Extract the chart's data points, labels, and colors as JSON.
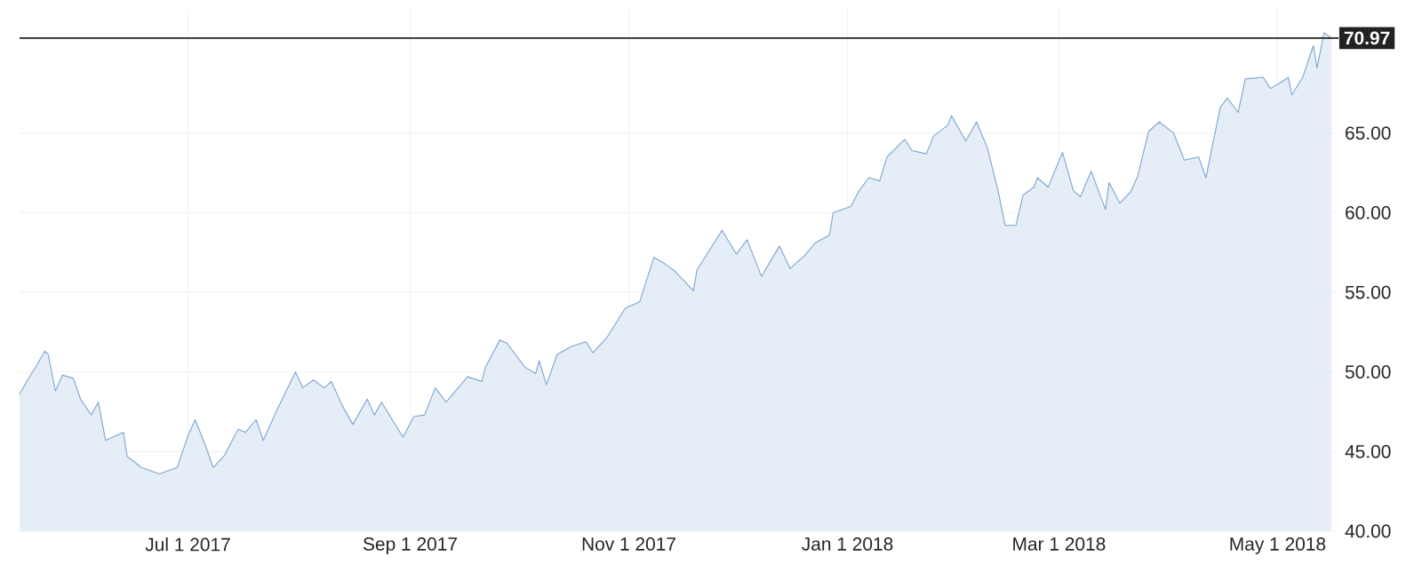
{
  "chart_data": {
    "type": "area",
    "x": [
      "2017-05-15",
      "2017-05-17",
      "2017-05-20",
      "2017-05-22",
      "2017-05-23",
      "2017-05-25",
      "2017-05-27",
      "2017-05-30",
      "2017-06-01",
      "2017-06-04",
      "2017-06-06",
      "2017-06-08",
      "2017-06-13",
      "2017-06-14",
      "2017-06-18",
      "2017-06-23",
      "2017-06-28",
      "2017-07-01",
      "2017-07-03",
      "2017-07-06",
      "2017-07-08",
      "2017-07-11",
      "2017-07-15",
      "2017-07-17",
      "2017-07-20",
      "2017-07-22",
      "2017-07-26",
      "2017-07-31",
      "2017-08-02",
      "2017-08-05",
      "2017-08-08",
      "2017-08-10",
      "2017-08-13",
      "2017-08-16",
      "2017-08-20",
      "2017-08-22",
      "2017-08-24",
      "2017-08-27",
      "2017-08-30",
      "2017-09-02",
      "2017-09-05",
      "2017-09-08",
      "2017-09-11",
      "2017-09-17",
      "2017-09-21",
      "2017-09-22",
      "2017-09-26",
      "2017-09-28",
      "2017-10-03",
      "2017-10-06",
      "2017-10-07",
      "2017-10-09",
      "2017-10-12",
      "2017-10-16",
      "2017-10-20",
      "2017-10-22",
      "2017-10-26",
      "2017-10-31",
      "2017-11-04",
      "2017-11-08",
      "2017-11-11",
      "2017-11-14",
      "2017-11-19",
      "2017-11-20",
      "2017-11-27",
      "2017-12-01",
      "2017-12-04",
      "2017-12-08",
      "2017-12-13",
      "2017-12-16",
      "2017-12-20",
      "2017-12-23",
      "2017-12-27",
      "2017-12-28",
      "2018-01-02",
      "2018-01-04",
      "2018-01-07",
      "2018-01-10",
      "2018-01-12",
      "2018-01-17",
      "2018-01-19",
      "2018-01-23",
      "2018-01-25",
      "2018-01-29",
      "2018-01-30",
      "2018-02-03",
      "2018-02-06",
      "2018-02-09",
      "2018-02-12",
      "2018-02-14",
      "2018-02-17",
      "2018-02-19",
      "2018-02-22",
      "2018-02-23",
      "2018-02-26",
      "2018-03-02",
      "2018-03-05",
      "2018-03-07",
      "2018-03-10",
      "2018-03-14",
      "2018-03-15",
      "2018-03-18",
      "2018-03-21",
      "2018-03-23",
      "2018-03-26",
      "2018-03-29",
      "2018-04-02",
      "2018-04-05",
      "2018-04-09",
      "2018-04-11",
      "2018-04-15",
      "2018-04-17",
      "2018-04-20",
      "2018-04-22",
      "2018-04-27",
      "2018-04-29",
      "2018-05-02",
      "2018-05-04",
      "2018-05-05",
      "2018-05-08",
      "2018-05-11",
      "2018-05-12",
      "2018-05-14",
      "2018-05-16"
    ],
    "series": [
      {
        "color": "#7ba6d2",
        "values": [
          48.6,
          49.4,
          50.5,
          51.3,
          51.1,
          48.8,
          49.8,
          49.6,
          48.3,
          47.3,
          48.1,
          45.7,
          46.2,
          44.7,
          44.0,
          43.6,
          44.0,
          46.0,
          47.0,
          45.3,
          44.0,
          44.7,
          46.4,
          46.2,
          47.0,
          45.7,
          47.7,
          50.0,
          49.0,
          49.5,
          49.0,
          49.4,
          47.9,
          46.7,
          48.3,
          47.3,
          48.1,
          47.0,
          45.9,
          47.2,
          47.3,
          49.0,
          48.1,
          49.7,
          49.4,
          50.3,
          52.0,
          51.8,
          50.3,
          49.9,
          50.7,
          49.2,
          51.1,
          51.6,
          51.9,
          51.2,
          52.2,
          54.0,
          54.4,
          57.2,
          56.8,
          56.3,
          55.1,
          56.4,
          58.9,
          57.4,
          58.3,
          56.0,
          57.9,
          56.5,
          57.3,
          58.1,
          58.6,
          60.0,
          60.4,
          61.3,
          62.2,
          62.0,
          63.5,
          64.6,
          63.9,
          63.7,
          64.8,
          65.5,
          66.1,
          64.5,
          65.7,
          64.1,
          61.4,
          59.2,
          59.2,
          61.1,
          61.6,
          62.2,
          61.6,
          63.8,
          61.4,
          61.0,
          62.6,
          60.2,
          61.9,
          60.6,
          61.3,
          62.3,
          65.1,
          65.7,
          65.0,
          63.3,
          63.5,
          62.2,
          66.6,
          67.2,
          66.3,
          68.4,
          68.5,
          67.8,
          68.2,
          68.5,
          67.4,
          68.5,
          70.5,
          69.1,
          71.3,
          70.97
        ]
      }
    ],
    "xlim": [
      "2017-05-15",
      "2018-05-18"
    ],
    "xticks": [
      {
        "value": "2017-07-01",
        "label": "Jul 1 2017"
      },
      {
        "value": "2017-09-01",
        "label": "Sep 1 2017"
      },
      {
        "value": "2017-11-01",
        "label": "Nov 1 2017"
      },
      {
        "value": "2018-01-01",
        "label": "Jan 1 2018"
      },
      {
        "value": "2018-03-01",
        "label": "Mar 1 2018"
      },
      {
        "value": "2018-05-01",
        "label": "May 1 2018"
      }
    ],
    "ylim": [
      40,
      72.8
    ],
    "yticks": [
      {
        "value": 40,
        "label": "40.00"
      },
      {
        "value": 45,
        "label": "45.00"
      },
      {
        "value": 50,
        "label": "50.00"
      },
      {
        "value": 55,
        "label": "55.00"
      },
      {
        "value": 60,
        "label": "60.00"
      },
      {
        "value": 65,
        "label": "65.00"
      }
    ],
    "ref_lines": [
      {
        "axis": "y",
        "value": 70.97,
        "label": "70.97",
        "color": "#222222"
      }
    ],
    "grid": true
  }
}
